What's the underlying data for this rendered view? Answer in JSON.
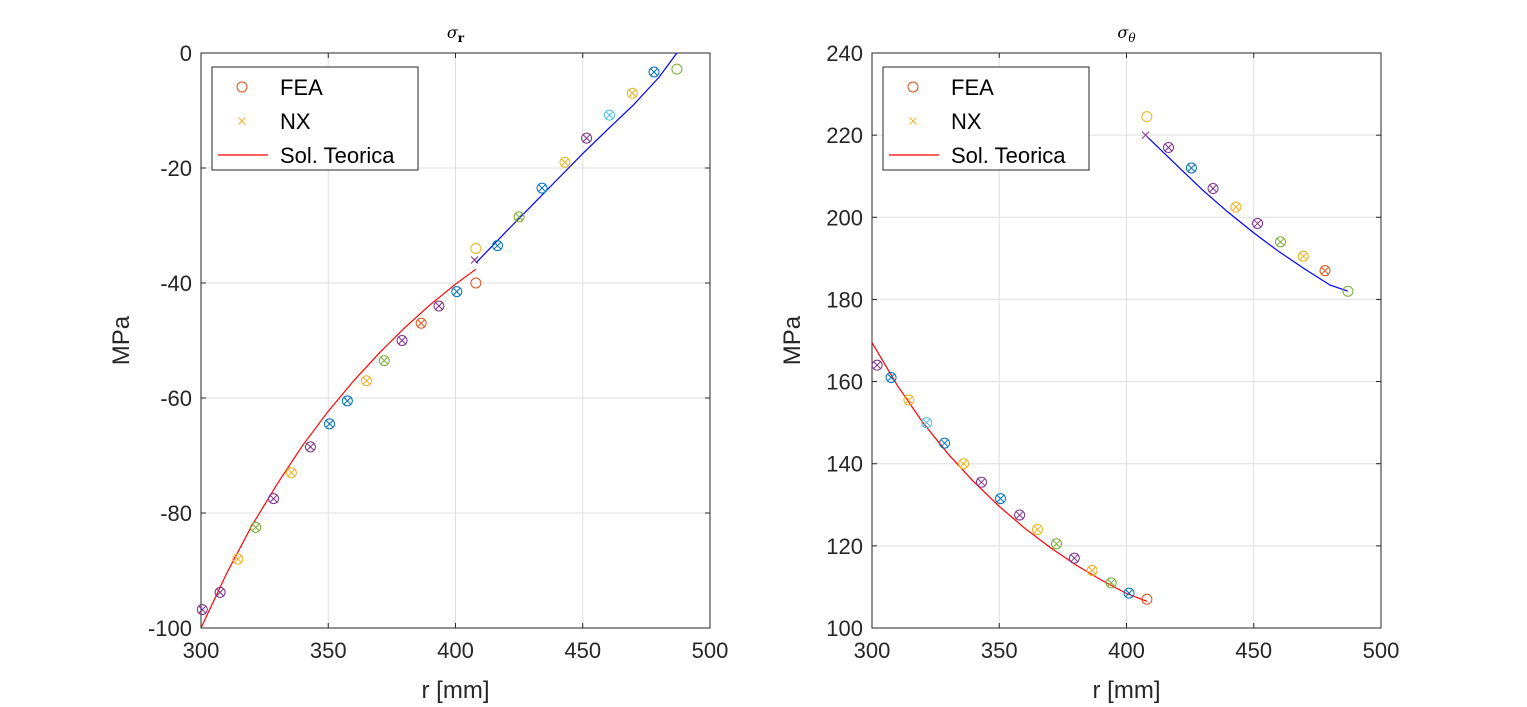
{
  "chart_data": [
    {
      "type": "scatter",
      "title_main": "σ",
      "title_sub": "r",
      "xlabel": "r [mm]",
      "ylabel": "MPa",
      "xlim": [
        300,
        500
      ],
      "ylim": [
        -100,
        0
      ],
      "xticks": [
        300,
        350,
        400,
        450,
        500
      ],
      "yticks": [
        -100,
        -80,
        -60,
        -40,
        -20,
        0
      ],
      "grid": true,
      "legend_placement": "top-left",
      "legend": [
        {
          "label": "FEA",
          "marker": "circle",
          "color": "#d95319"
        },
        {
          "label": "NX",
          "marker": "x",
          "color": "#edb120"
        },
        {
          "label": "Sol. Teorica",
          "marker": "line",
          "color": "#ff0000"
        }
      ],
      "theory_curves": [
        {
          "color": "#ff0000",
          "x": [
            300,
            310,
            320,
            330,
            340,
            350,
            360,
            370,
            380,
            390,
            400,
            408
          ],
          "y": [
            -100,
            -90.6,
            -82.2,
            -74.9,
            -68.2,
            -62.3,
            -57.0,
            -52.2,
            -47.8,
            -43.8,
            -40.2,
            -37.6
          ]
        },
        {
          "color": "#0000ff",
          "x": [
            408,
            420,
            430,
            440,
            450,
            460,
            470,
            480,
            487
          ],
          "y": [
            -36.5,
            -31.0,
            -26.5,
            -22.0,
            -17.5,
            -13.2,
            -9.0,
            -4.2,
            0
          ]
        }
      ],
      "points": [
        {
          "x": 300.5,
          "y": -96.8,
          "color": "#7e2f8e"
        },
        {
          "x": 307.5,
          "y": -93.8,
          "color": "#7e2f8e"
        },
        {
          "x": 314.5,
          "y": -88.0,
          "color": "#edb120"
        },
        {
          "x": 321.5,
          "y": -82.5,
          "color": "#77ac30"
        },
        {
          "x": 328.5,
          "y": -77.5,
          "color": "#7e2f8e"
        },
        {
          "x": 335.5,
          "y": -73.0,
          "color": "#edb120"
        },
        {
          "x": 343.0,
          "y": -68.5,
          "color": "#7e2f8e"
        },
        {
          "x": 350.5,
          "y": -64.5,
          "color": "#0072bd"
        },
        {
          "x": 357.5,
          "y": -60.5,
          "color": "#0072bd"
        },
        {
          "x": 365.0,
          "y": -57.0,
          "color": "#edb120"
        },
        {
          "x": 372.0,
          "y": -53.5,
          "color": "#77ac30"
        },
        {
          "x": 379.0,
          "y": -50.0,
          "color": "#7e2f8e"
        },
        {
          "x": 386.5,
          "y": -47.0,
          "color": "#d95319"
        },
        {
          "x": 393.5,
          "y": -44.0,
          "color": "#7e2f8e"
        },
        {
          "x": 400.5,
          "y": -41.5,
          "color": "#0072bd"
        },
        {
          "x": 408.0,
          "y": -34.0,
          "color": "#edb120",
          "marker": "circle"
        },
        {
          "x": 407.5,
          "y": -36.0,
          "color": "#7e2f8e",
          "marker": "x"
        },
        {
          "x": 408.0,
          "y": -40.0,
          "color": "#d95319",
          "marker": "circle"
        },
        {
          "x": 416.5,
          "y": -33.5,
          "color": "#0072bd"
        },
        {
          "x": 425.0,
          "y": -28.5,
          "color": "#77ac30"
        },
        {
          "x": 434.0,
          "y": -23.5,
          "color": "#0072bd"
        },
        {
          "x": 443.0,
          "y": -19.0,
          "color": "#edb120"
        },
        {
          "x": 451.5,
          "y": -14.8,
          "color": "#7e2f8e"
        },
        {
          "x": 460.5,
          "y": -10.8,
          "color": "#4dbeee"
        },
        {
          "x": 469.5,
          "y": -7.0,
          "color": "#edb120"
        },
        {
          "x": 478.0,
          "y": -3.3,
          "color": "#0072bd"
        },
        {
          "x": 487.0,
          "y": -2.8,
          "color": "#77ac30",
          "marker": "circle"
        }
      ]
    },
    {
      "type": "scatter",
      "title_main": "σ",
      "title_sub": "θ",
      "xlabel": "r [mm]",
      "ylabel": "MPa",
      "xlim": [
        300,
        500
      ],
      "ylim": [
        100,
        240
      ],
      "xticks": [
        300,
        350,
        400,
        450,
        500
      ],
      "yticks": [
        100,
        120,
        140,
        160,
        180,
        200,
        220,
        240
      ],
      "grid": true,
      "legend_placement": "top-left",
      "legend": [
        {
          "label": "FEA",
          "marker": "circle",
          "color": "#d95319"
        },
        {
          "label": "NX",
          "marker": "x",
          "color": "#edb120"
        },
        {
          "label": "Sol. Teorica",
          "marker": "line",
          "color": "#ff0000"
        }
      ],
      "theory_curves": [
        {
          "color": "#ff0000",
          "x": [
            300,
            310,
            320,
            330,
            340,
            350,
            360,
            370,
            380,
            390,
            400,
            408
          ],
          "y": [
            169.5,
            159.0,
            150.0,
            142.3,
            135.6,
            129.6,
            124.3,
            119.6,
            115.4,
            111.7,
            108.4,
            106.5
          ]
        },
        {
          "color": "#0000ff",
          "x": [
            408,
            420,
            430,
            440,
            450,
            460,
            470,
            480,
            487
          ],
          "y": [
            219.7,
            212.5,
            206.6,
            201.2,
            196.2,
            191.6,
            187.4,
            183.5,
            182.0
          ]
        }
      ],
      "points": [
        {
          "x": 302.0,
          "y": 164.0,
          "color": "#7e2f8e"
        },
        {
          "x": 307.5,
          "y": 161.0,
          "color": "#0072bd"
        },
        {
          "x": 314.5,
          "y": 155.5,
          "color": "#edb120"
        },
        {
          "x": 321.5,
          "y": 150.0,
          "color": "#4dbeee"
        },
        {
          "x": 328.5,
          "y": 145.0,
          "color": "#0072bd"
        },
        {
          "x": 336.0,
          "y": 140.0,
          "color": "#edb120"
        },
        {
          "x": 343.0,
          "y": 135.5,
          "color": "#7e2f8e"
        },
        {
          "x": 350.5,
          "y": 131.5,
          "color": "#0072bd"
        },
        {
          "x": 358.0,
          "y": 127.5,
          "color": "#7e2f8e"
        },
        {
          "x": 365.0,
          "y": 124.0,
          "color": "#edb120"
        },
        {
          "x": 372.5,
          "y": 120.5,
          "color": "#77ac30"
        },
        {
          "x": 379.5,
          "y": 117.0,
          "color": "#7e2f8e"
        },
        {
          "x": 386.5,
          "y": 114.0,
          "color": "#edb120"
        },
        {
          "x": 394.0,
          "y": 111.0,
          "color": "#77ac30"
        },
        {
          "x": 401.0,
          "y": 108.5,
          "color": "#0072bd"
        },
        {
          "x": 408.0,
          "y": 107.0,
          "color": "#d95319",
          "marker": "circle"
        },
        {
          "x": 408.0,
          "y": 224.5,
          "color": "#edb120",
          "marker": "circle"
        },
        {
          "x": 407.5,
          "y": 220.0,
          "color": "#7e2f8e",
          "marker": "x"
        },
        {
          "x": 416.5,
          "y": 217.0,
          "color": "#7e2f8e"
        },
        {
          "x": 425.5,
          "y": 212.0,
          "color": "#0072bd"
        },
        {
          "x": 434.0,
          "y": 207.0,
          "color": "#7e2f8e"
        },
        {
          "x": 443.0,
          "y": 202.5,
          "color": "#edb120"
        },
        {
          "x": 451.5,
          "y": 198.5,
          "color": "#7e2f8e"
        },
        {
          "x": 460.5,
          "y": 194.0,
          "color": "#77ac30"
        },
        {
          "x": 469.5,
          "y": 190.5,
          "color": "#edb120"
        },
        {
          "x": 478.0,
          "y": 187.0,
          "color": "#d95319"
        },
        {
          "x": 487.0,
          "y": 182.0,
          "color": "#77ac30",
          "marker": "circle"
        }
      ]
    }
  ]
}
